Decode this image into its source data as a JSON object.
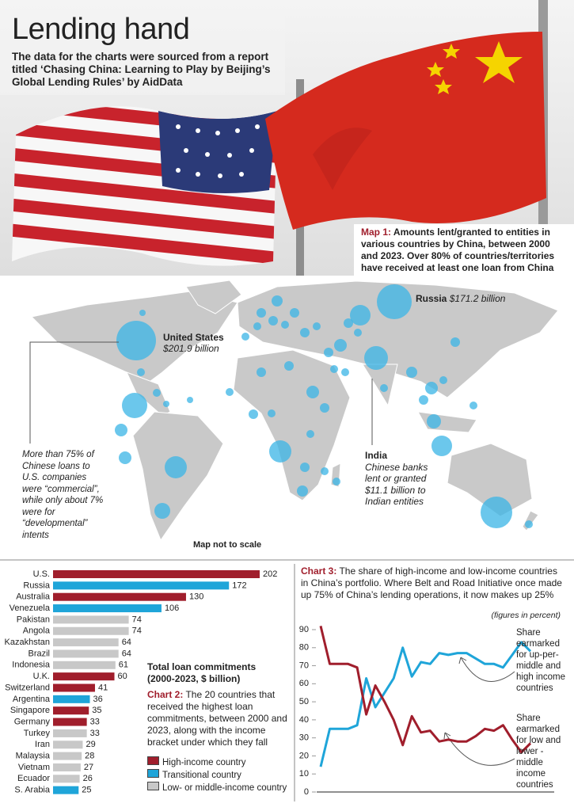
{
  "header": {
    "title": "Lending hand",
    "subtitle": "The data for the charts were sourced from a report titled ‘Chasing China: Learning to Play by Beijing’s Global Lending Rules’ by AidData"
  },
  "map": {
    "label": "Map 1:",
    "caption": "Amounts lent/granted to entities in various countries by China, between 2000 and 2023. Over 80% of countries/territories have received at least one loan from China",
    "annotations": [
      {
        "name": "Russia",
        "text": "$171.2 billion"
      },
      {
        "name": "United States",
        "text": "$201.9 billion"
      },
      {
        "name": "India",
        "text": "Chinese banks lent or granted $11.1 billion to Indian entities"
      }
    ],
    "note": "More than 75% of Chinese loans to U.S. companies were “commercial”, while only about 7% were for “developmental” intents",
    "scale_note": "Map not to scale"
  },
  "chart_data": [
    {
      "type": "bar",
      "orientation": "horizontal",
      "title": "Total loan commitments (2000-2023, $ billion)",
      "label": "Chart 2:",
      "subtitle": "The 20 countries that received the highest loan commitments, between 2000 and 2023, along with the income bracket under which they fall",
      "categories": [
        "U.S.",
        "Russia",
        "Australia",
        "Venezuela",
        "Pakistan",
        "Angola",
        "Kazakhstan",
        "Brazil",
        "Indonesia",
        "U.K.",
        "Switzerland",
        "Argentina",
        "Singapore",
        "Germany",
        "Turkey",
        "Iran",
        "Malaysia",
        "Vietnam",
        "Ecuador",
        "S. Arabia"
      ],
      "series": [
        {
          "name": "High-income country",
          "color": "#a01e2c",
          "values": [
            202,
            null,
            130,
            null,
            null,
            null,
            null,
            null,
            null,
            60,
            41,
            null,
            35,
            33,
            null,
            null,
            null,
            null,
            null,
            null
          ]
        },
        {
          "name": "Transitional country",
          "color": "#1fa5d9",
          "values": [
            null,
            172,
            null,
            106,
            null,
            null,
            null,
            null,
            null,
            null,
            null,
            36,
            null,
            null,
            null,
            null,
            null,
            null,
            null,
            25
          ]
        },
        {
          "name": "Low- or middle-income country",
          "color": "#c8c8c8",
          "values": [
            null,
            null,
            null,
            null,
            74,
            74,
            64,
            64,
            61,
            null,
            null,
            null,
            null,
            null,
            33,
            29,
            28,
            27,
            26,
            null
          ]
        }
      ]
    },
    {
      "type": "line",
      "label": "Chart 3:",
      "title": "The share of high-income and low-income countries in China’s portfolio. Where Belt and Road Initiative once made up 75% of China’s lending operations, it now makes up 25%",
      "unit_note": "(figures in percent)",
      "categories": [
        null,
        null,
        null,
        null,
        null,
        null,
        null,
        null,
        null,
        null,
        null,
        null,
        null,
        null,
        null,
        null,
        null,
        null,
        null,
        null,
        null,
        null,
        null,
        null
      ],
      "ylim": [
        0,
        95
      ],
      "yticks": [
        0,
        10,
        20,
        30,
        40,
        50,
        60,
        70,
        80,
        90
      ],
      "series": [
        {
          "name": "Share earmarked for up-per-middle and high income countries",
          "color": "#1fa5d9",
          "values": [
            14,
            35,
            35,
            35,
            37,
            63,
            47,
            55,
            63,
            80,
            64,
            72,
            71,
            77,
            76,
            77,
            77,
            74,
            71,
            71,
            69,
            76,
            83,
            78
          ]
        },
        {
          "name": "Share earmarked for low and lower -middle income countries",
          "color": "#a01e2c",
          "values": [
            92,
            71,
            71,
            71,
            69,
            43,
            59,
            50,
            40,
            26,
            42,
            33,
            34,
            28,
            29,
            28,
            28,
            31,
            35,
            34,
            37,
            29,
            22,
            27
          ]
        }
      ]
    }
  ]
}
